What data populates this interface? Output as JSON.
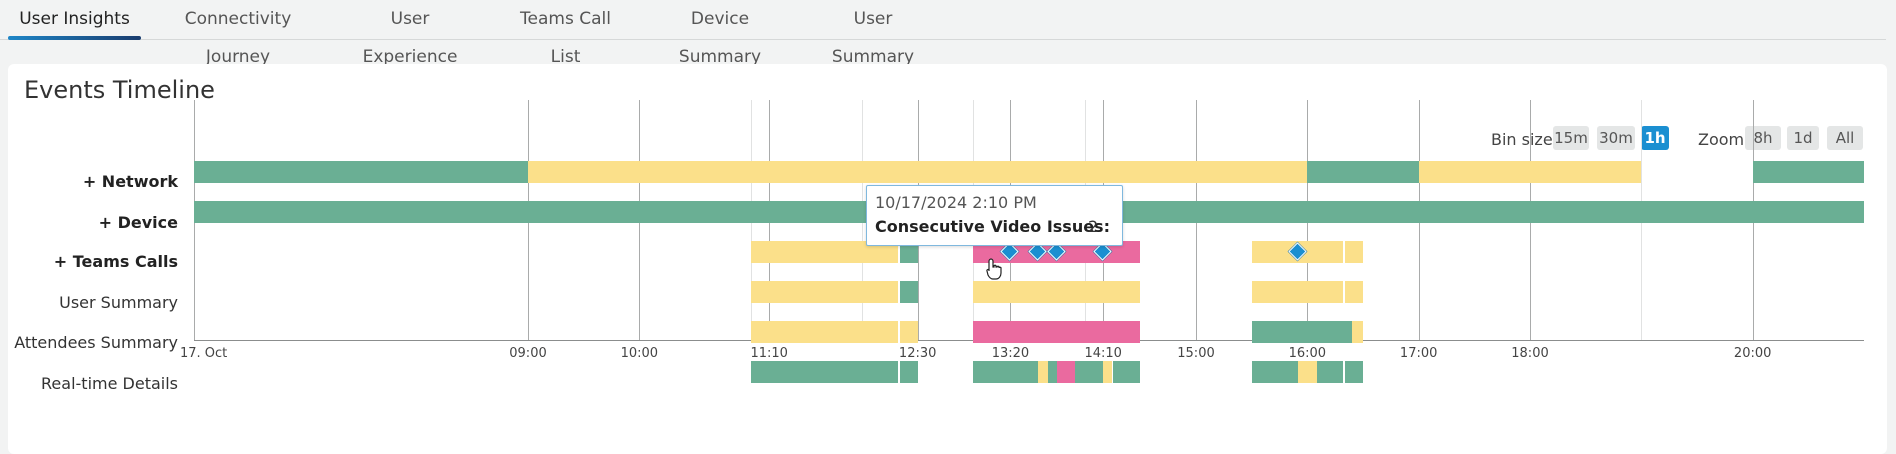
{
  "tabs": [
    {
      "label": "User Insights",
      "active": true
    },
    {
      "label": "Connectivity Journey"
    },
    {
      "label": "User Experience"
    },
    {
      "label": "Teams Call List"
    },
    {
      "label": "Device Summary"
    },
    {
      "label": "User Summary"
    }
  ],
  "card": {
    "title": "Events Timeline"
  },
  "controls": {
    "bin_size_label": "Bin size",
    "bin_sizes": [
      "15m",
      "30m",
      "1h"
    ],
    "bin_size_selected": "1h",
    "zoom_label": "Zoom",
    "zoom_options": [
      "8h",
      "1d",
      "All"
    ]
  },
  "rows": [
    {
      "label": "+ Network",
      "bold": true
    },
    {
      "label": "+ Device",
      "bold": true
    },
    {
      "label": "+ Teams Calls",
      "bold": true
    },
    {
      "label": "User Summary"
    },
    {
      "label": "Attendees Summary"
    },
    {
      "label": "Real-time Details"
    }
  ],
  "legend_colors": {
    "good": "#6aaf94",
    "warning": "#fbe08a",
    "poor": "#ea6a9f",
    "marker": "#1b8fd1"
  },
  "chart_data": {
    "type": "timeline",
    "x_axis": {
      "range": [
        "17 Oct 06:00",
        "17 Oct 21:00"
      ],
      "tick_labels": [
        {
          "t": "06:00",
          "label": "17. Oct"
        },
        {
          "t": "09:00",
          "label": "09:00"
        },
        {
          "t": "10:00",
          "label": "10:00"
        },
        {
          "t": "11:10",
          "label": "11:10"
        },
        {
          "t": "12:30",
          "label": "12:30"
        },
        {
          "t": "13:20",
          "label": "13:20"
        },
        {
          "t": "14:10",
          "label": "14:10"
        },
        {
          "t": "15:00",
          "label": "15:00"
        },
        {
          "t": "16:00",
          "label": "16:00"
        },
        {
          "t": "17:00",
          "label": "17:00"
        },
        {
          "t": "18:00",
          "label": "18:00"
        },
        {
          "t": "20:00",
          "label": "20:00"
        }
      ],
      "major_grid": [
        "09:00",
        "10:00",
        "11:10",
        "12:30",
        "13:20",
        "14:10",
        "15:00",
        "16:00",
        "17:00",
        "18:00",
        "20:00"
      ],
      "minor_grid": [
        "11:00",
        "12:00",
        "13:00",
        "14:00",
        "19:00"
      ]
    },
    "series": [
      {
        "row": 0,
        "segments": [
          {
            "start": "06:00",
            "end": "09:00",
            "status": "good"
          },
          {
            "start": "09:00",
            "end": "16:00",
            "status": "warning"
          },
          {
            "start": "16:00",
            "end": "17:00",
            "status": "good"
          },
          {
            "start": "17:00",
            "end": "19:00",
            "status": "warning"
          },
          {
            "start": "20:00",
            "end": "21:00",
            "status": "good"
          }
        ]
      },
      {
        "row": 1,
        "segments": [
          {
            "start": "06:00",
            "end": "21:00",
            "status": "good"
          }
        ]
      },
      {
        "row": 2,
        "segments": [
          {
            "start": "11:00",
            "end": "12:20",
            "status": "warning"
          },
          {
            "start": "12:20",
            "end": "12:30",
            "status": "good"
          },
          {
            "start": "13:00",
            "end": "14:30",
            "status": "poor"
          },
          {
            "start": "15:30",
            "end": "16:30",
            "status": "warning"
          }
        ],
        "separators": [
          "12:20",
          "16:20"
        ]
      },
      {
        "row": 3,
        "segments": [
          {
            "start": "11:00",
            "end": "12:20",
            "status": "warning"
          },
          {
            "start": "12:20",
            "end": "12:30",
            "status": "good"
          },
          {
            "start": "13:00",
            "end": "14:30",
            "status": "warning"
          },
          {
            "start": "15:30",
            "end": "16:30",
            "status": "warning"
          }
        ],
        "separators": [
          "12:20",
          "16:20"
        ]
      },
      {
        "row": 4,
        "segments": [
          {
            "start": "11:00",
            "end": "12:30",
            "status": "warning"
          },
          {
            "start": "13:00",
            "end": "14:30",
            "status": "poor"
          },
          {
            "start": "15:30",
            "end": "16:24",
            "status": "good"
          },
          {
            "start": "16:24",
            "end": "16:30",
            "status": "warning"
          }
        ],
        "separators": [
          "12:20"
        ]
      },
      {
        "row": 5,
        "segments": [
          {
            "start": "11:00",
            "end": "12:30",
            "status": "good"
          },
          {
            "start": "13:00",
            "end": "13:35",
            "status": "good"
          },
          {
            "start": "13:35",
            "end": "13:40",
            "status": "warning"
          },
          {
            "start": "13:40",
            "end": "13:45",
            "status": "good"
          },
          {
            "start": "13:45",
            "end": "13:55",
            "status": "poor"
          },
          {
            "start": "13:55",
            "end": "14:10",
            "status": "good"
          },
          {
            "start": "14:10",
            "end": "14:15",
            "status": "warning"
          },
          {
            "start": "14:15",
            "end": "14:30",
            "status": "good"
          },
          {
            "start": "15:30",
            "end": "15:55",
            "status": "good"
          },
          {
            "start": "15:55",
            "end": "16:05",
            "status": "warning"
          },
          {
            "start": "16:05",
            "end": "16:30",
            "status": "good"
          }
        ],
        "separators": [
          "12:20",
          "16:20"
        ]
      }
    ],
    "markers": [
      {
        "row": 2,
        "t": "13:20"
      },
      {
        "row": 2,
        "t": "13:35"
      },
      {
        "row": 2,
        "t": "13:45"
      },
      {
        "row": 2,
        "t": "14:10"
      },
      {
        "row": 2,
        "t": "15:55"
      }
    ]
  },
  "tooltip": {
    "date": "10/17/2024 2:10 PM",
    "metric": "Consecutive Video Issues:",
    "value": "2"
  }
}
